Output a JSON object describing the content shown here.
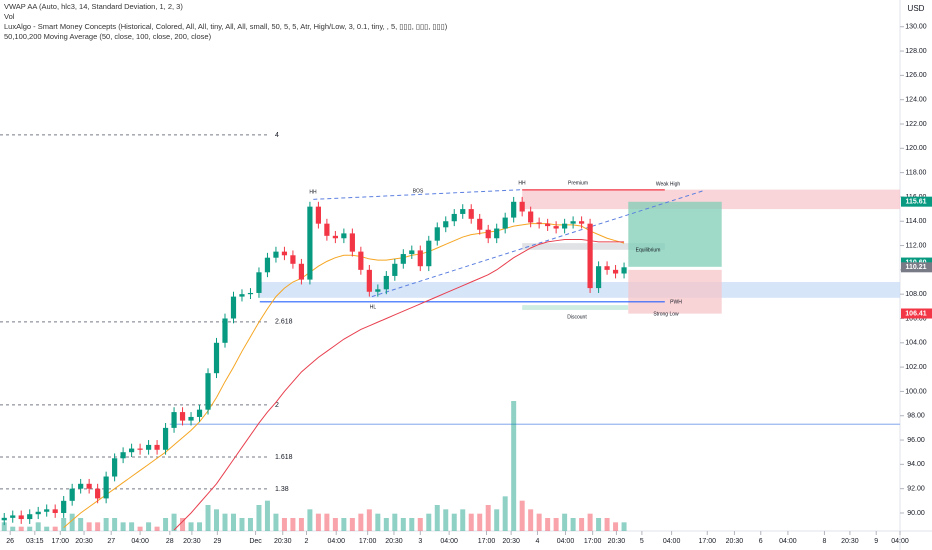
{
  "chart_data": {
    "type": "candlestick",
    "legend_lines": [
      "VWAP AA (Auto, hlc3, 14, Standard Deviation, 1, 2, 3)",
      "Vol",
      "LuxAlgo - Smart Money Concepts (Historical, Colored, All, All, tiny, All, All, small, 50, 5, 5, Atr, High/Low, 3, 0.1, tiny, , 5, ▯▯▯, ▯▯▯, ▯▯▯)",
      "50,100,200 Moving Average (50, close, 100, close, 200, close)"
    ],
    "currency": "USD",
    "xlim": [
      0,
      106
    ],
    "xticks": [
      {
        "value": 1.2,
        "label": "26"
      },
      {
        "value": 4.1,
        "label": "03:15"
      },
      {
        "value": 7.1,
        "label": "17:00"
      },
      {
        "value": 9.9,
        "label": "20:30"
      },
      {
        "value": 13.1,
        "label": "27"
      },
      {
        "value": 16.5,
        "label": "04:00"
      },
      {
        "value": 20.0,
        "label": "28"
      },
      {
        "value": 22.6,
        "label": "20:30"
      },
      {
        "value": 25.6,
        "label": "29"
      },
      {
        "value": 30.1,
        "label": "Dec"
      },
      {
        "value": 33.3,
        "label": "20:30"
      },
      {
        "value": 36.1,
        "label": "2"
      },
      {
        "value": 39.6,
        "label": "04:00"
      },
      {
        "value": 43.3,
        "label": "17:00"
      },
      {
        "value": 46.4,
        "label": "20:30"
      },
      {
        "value": 49.5,
        "label": "3"
      },
      {
        "value": 52.9,
        "label": "04:00"
      },
      {
        "value": 57.3,
        "label": "17:00"
      },
      {
        "value": 60.2,
        "label": "20:30"
      },
      {
        "value": 63.3,
        "label": "4"
      },
      {
        "value": 66.6,
        "label": "04:00"
      },
      {
        "value": 69.8,
        "label": "17:00"
      },
      {
        "value": 72.6,
        "label": "20:30"
      },
      {
        "value": 75.6,
        "label": "5"
      },
      {
        "value": 79.1,
        "label": "04:00"
      },
      {
        "value": 83.3,
        "label": "17:00"
      },
      {
        "value": 86.5,
        "label": "20:30"
      },
      {
        "value": 89.6,
        "label": "6"
      },
      {
        "value": 92.8,
        "label": "04:00"
      },
      {
        "value": 97.1,
        "label": "8"
      },
      {
        "value": 100.1,
        "label": "20:30"
      },
      {
        "value": 103.2,
        "label": "9"
      },
      {
        "value": 106.0,
        "label": "04:00"
      }
    ],
    "ylim": [
      88.6,
      132.2
    ],
    "yticks": [
      {
        "value": 90,
        "label": "90.00"
      },
      {
        "value": 92,
        "label": "92.00"
      },
      {
        "value": 94,
        "label": "94.00"
      },
      {
        "value": 96,
        "label": "96.00"
      },
      {
        "value": 98,
        "label": "98.00"
      },
      {
        "value": 100,
        "label": "100.00"
      },
      {
        "value": 102,
        "label": "102.00"
      },
      {
        "value": 104,
        "label": "104.00"
      },
      {
        "value": 106,
        "label": "106.00"
      },
      {
        "value": 108,
        "label": "108.00"
      },
      {
        "value": 110,
        "label": "110.00"
      },
      {
        "value": 112,
        "label": "112.00"
      },
      {
        "value": 114,
        "label": "114.00"
      },
      {
        "value": 116,
        "label": "116.00"
      },
      {
        "value": 118,
        "label": "118.00"
      },
      {
        "value": 120,
        "label": "120.00"
      },
      {
        "value": 122,
        "label": "122.00"
      },
      {
        "value": 124,
        "label": "124.00"
      },
      {
        "value": 126,
        "label": "126.00"
      },
      {
        "value": 128,
        "label": "128.00"
      },
      {
        "value": 130,
        "label": "130.00"
      }
    ],
    "up_color": "#089981",
    "down_color": "#f23645",
    "open": [
      89.4,
      89.6,
      89.8,
      89.5,
      89.9,
      90.1,
      90.3,
      90.0,
      91.0,
      92.0,
      92.4,
      92.0,
      91.2,
      93.0,
      94.5,
      95.0,
      95.3,
      95.2,
      95.6,
      95.2,
      97.0,
      98.3,
      97.6,
      97.9,
      98.5,
      101.5,
      104.0,
      106.0,
      107.8,
      108.0,
      108.1,
      109.8,
      111.0,
      111.5,
      111.2,
      110.5,
      109.2,
      115.2,
      113.8,
      112.8,
      112.6,
      113.0,
      111.5,
      110.0,
      108.2,
      108.4,
      109.5,
      110.5,
      111.3,
      111.6,
      110.3,
      112.4,
      113.5,
      114.0,
      114.6,
      115.0,
      114.2,
      113.3,
      112.6,
      113.4,
      114.3,
      115.6,
      114.8,
      113.9,
      113.8,
      113.6,
      113.4,
      113.8,
      114.0,
      113.8,
      108.5,
      110.3,
      110.0,
      109.7
    ],
    "high": [
      90.0,
      90.2,
      90.2,
      90.3,
      90.5,
      90.7,
      90.7,
      91.4,
      92.4,
      92.8,
      92.8,
      92.4,
      93.4,
      94.9,
      95.4,
      95.7,
      95.7,
      96.0,
      96.0,
      97.4,
      98.7,
      98.7,
      98.3,
      98.9,
      101.9,
      104.4,
      106.4,
      108.2,
      108.4,
      108.5,
      110.2,
      111.4,
      111.9,
      111.9,
      111.6,
      110.9,
      115.6,
      115.6,
      114.2,
      113.2,
      113.4,
      113.4,
      111.9,
      110.4,
      108.8,
      109.9,
      110.9,
      111.7,
      112.0,
      112.0,
      112.8,
      113.9,
      114.4,
      115.0,
      115.4,
      115.4,
      114.6,
      113.7,
      113.8,
      114.7,
      116.0,
      116.0,
      115.2,
      114.3,
      114.2,
      114.0,
      114.2,
      114.4,
      114.4,
      114.2,
      110.7,
      110.7,
      110.4,
      110.6
    ],
    "low": [
      89.0,
      89.2,
      89.1,
      89.1,
      89.5,
      89.7,
      89.6,
      89.6,
      90.6,
      91.6,
      91.6,
      90.8,
      90.8,
      92.6,
      94.1,
      94.6,
      94.8,
      94.8,
      94.8,
      94.8,
      96.6,
      97.2,
      97.2,
      97.5,
      98.1,
      101.1,
      103.6,
      105.6,
      107.4,
      107.6,
      107.7,
      109.4,
      110.6,
      110.8,
      110.1,
      108.8,
      108.8,
      113.4,
      112.4,
      112.2,
      112.2,
      111.1,
      109.6,
      107.8,
      107.8,
      108.0,
      109.1,
      110.1,
      110.9,
      109.9,
      109.9,
      112.0,
      113.1,
      113.6,
      114.2,
      113.8,
      112.9,
      112.2,
      112.2,
      113.0,
      113.9,
      114.4,
      113.5,
      113.4,
      113.2,
      113.0,
      113.0,
      113.4,
      113.4,
      108.1,
      108.1,
      109.6,
      109.3,
      109.3
    ],
    "close": [
      89.6,
      89.8,
      89.5,
      89.9,
      90.1,
      90.3,
      90.0,
      91.0,
      92.0,
      92.4,
      92.0,
      91.2,
      93.0,
      94.5,
      95.0,
      95.3,
      95.2,
      95.6,
      95.2,
      97.0,
      98.3,
      97.6,
      97.9,
      98.5,
      101.5,
      104.0,
      106.0,
      107.8,
      108.0,
      108.1,
      109.8,
      111.0,
      111.5,
      111.2,
      110.5,
      109.2,
      115.2,
      113.8,
      112.8,
      112.6,
      113.0,
      111.5,
      110.0,
      108.2,
      108.4,
      109.5,
      110.5,
      111.3,
      111.6,
      110.3,
      112.4,
      113.5,
      114.0,
      114.6,
      115.0,
      114.2,
      113.3,
      112.6,
      113.4,
      114.3,
      115.6,
      114.8,
      113.9,
      113.8,
      113.6,
      113.4,
      113.8,
      114.0,
      113.8,
      108.5,
      110.3,
      110.0,
      109.7,
      110.21
    ],
    "volume": [
      2,
      1,
      1,
      1,
      2,
      1,
      1,
      3,
      4,
      3,
      2,
      2,
      3,
      3,
      2,
      2,
      1,
      2,
      1,
      3,
      4,
      3,
      2,
      2,
      6,
      5,
      4,
      4,
      3,
      3,
      6,
      7,
      4,
      3,
      3,
      3,
      5,
      4,
      4,
      3,
      3,
      3,
      4,
      5,
      4,
      3,
      4,
      3,
      3,
      3,
      4,
      6,
      5,
      4,
      5,
      4,
      4,
      6,
      5,
      8,
      30,
      7,
      5,
      4,
      3,
      3,
      4,
      3,
      3,
      4,
      3,
      3,
      2,
      2
    ],
    "volume_lim": [
      0,
      30
    ],
    "ma_series": [
      {
        "color": "#f5a623",
        "values": [
          null,
          null,
          null,
          null,
          null,
          null,
          null,
          88.8,
          89.4,
          90.0,
          90.5,
          91.0,
          91.5,
          92.0,
          92.5,
          93.0,
          93.5,
          94.0,
          94.5,
          95.0,
          95.6,
          96.2,
          96.8,
          97.5,
          98.4,
          99.5,
          100.8,
          102.0,
          103.3,
          104.5,
          105.7,
          106.8,
          107.8,
          108.5,
          109.0,
          109.3,
          109.8,
          110.3,
          110.7,
          111.0,
          111.2,
          111.2,
          111.1,
          110.9,
          110.8,
          110.8,
          110.9,
          111.0,
          111.2,
          111.3,
          111.5,
          111.8,
          112.1,
          112.4,
          112.7,
          112.9,
          113.0,
          113.1,
          113.2,
          113.4,
          113.6,
          113.7,
          113.8,
          113.8,
          113.8,
          113.7,
          113.7,
          113.7,
          113.6,
          113.2,
          112.9,
          112.6,
          112.4,
          112.2
        ]
      },
      {
        "color": "#e8404f",
        "values": [
          null,
          null,
          null,
          null,
          null,
          null,
          null,
          null,
          null,
          null,
          null,
          null,
          null,
          null,
          null,
          null,
          null,
          null,
          null,
          null,
          88.6,
          89.3,
          90.0,
          90.8,
          91.6,
          92.4,
          93.4,
          94.4,
          95.4,
          96.4,
          97.4,
          98.3,
          99.1,
          100.0,
          100.8,
          101.6,
          102.2,
          102.8,
          103.3,
          103.8,
          104.3,
          104.7,
          105.1,
          105.4,
          105.7,
          106.0,
          106.3,
          106.6,
          106.9,
          107.2,
          107.5,
          107.8,
          108.1,
          108.4,
          108.7,
          109.0,
          109.3,
          109.6,
          110.0,
          110.5,
          111.0,
          111.4,
          111.8,
          112.1,
          112.3,
          112.4,
          112.5,
          112.5,
          112.5,
          112.4,
          112.3,
          112.3,
          112.3,
          112.3
        ]
      }
    ],
    "zones": [
      {
        "x": [
          61.5,
          106
        ],
        "y": [
          115.0,
          116.6
        ],
        "color": "#f7c6cc"
      },
      {
        "x": [
          61.5,
          78.3
        ],
        "y": [
          111.65,
          112.2
        ],
        "color": "#d6d8dc"
      },
      {
        "x": [
          30.6,
          106
        ],
        "y": [
          107.7,
          109.0
        ],
        "color": "#c9dcf7"
      },
      {
        "x": [
          61.5,
          74
        ],
        "y": [
          106.7,
          107.1
        ],
        "color": "#bfe8d8"
      },
      {
        "x": [
          74,
          85
        ],
        "y": [
          110.25,
          115.6
        ],
        "color": "#7fcdb5"
      },
      {
        "x": [
          74,
          85
        ],
        "y": [
          106.4,
          110.0
        ],
        "color": "#f5c5ca"
      }
    ],
    "hlines": [
      {
        "x": [
          20,
          106
        ],
        "value": 97.3,
        "color": "#9ab8ef"
      },
      {
        "x": [
          30.6,
          78.3
        ],
        "value": 107.37,
        "color": "#2962ff"
      },
      {
        "x": [
          61.5,
          78.3
        ],
        "value": 116.58,
        "color": "#f23645"
      }
    ],
    "trendlines": [
      {
        "x": [
          43.8,
          82.8
        ],
        "y": [
          107.8,
          116.5
        ]
      },
      {
        "x": [
          36.9,
          61.6
        ],
        "y": [
          115.8,
          116.6
        ]
      }
    ],
    "fib_levels": [
      {
        "value": 121.1,
        "label": "4"
      },
      {
        "value": 105.72,
        "label": "2.618"
      },
      {
        "value": 98.89,
        "label": "2"
      },
      {
        "value": 94.61,
        "label": "1.618"
      },
      {
        "value": 91.98,
        "label": "1.38"
      }
    ],
    "annotations": [
      "BOS",
      "HH",
      "HH",
      "Premium",
      "Equilibrium",
      "Discount",
      "HL",
      "PWH",
      "Weak High",
      "Strong Low"
    ],
    "price_labels": {
      "values": [
        115.61,
        110.6,
        110.21,
        106.41
      ],
      "value_labels": [
        "115.61",
        "110.60",
        "110.21",
        "106.41"
      ],
      "colors": [
        "#089981",
        "#089981",
        "#787b86",
        "#f23645"
      ]
    }
  }
}
